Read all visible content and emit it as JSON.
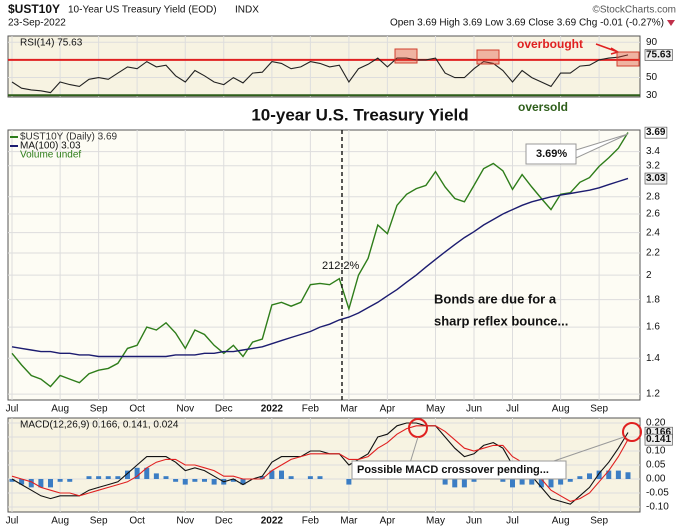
{
  "header": {
    "symbol": "$UST10Y",
    "name": "10-Year US Treasury Yield (EOD)",
    "exchange": "INDX",
    "date": "23-Sep-2022",
    "source": "©StockCharts.com",
    "quote": "Open 3.69 High 3.69 Low 3.69 Close 3.69 Chg -0.01 (-0.27%)"
  },
  "chart_data": [
    {
      "type": "line",
      "title": "RSI(14) 75.63",
      "ylim": [
        28,
        97
      ],
      "yticks": [
        90,
        50,
        30
      ],
      "grid": true,
      "overbought_level": 70,
      "overbought_color": "#e02020",
      "oversold_level": 30,
      "oversold_color": "#2e5e1a",
      "annotations": [
        "overbought",
        "oversold"
      ],
      "series": [
        {
          "color": "#222222",
          "values": [
            45,
            38,
            36,
            35,
            33,
            45,
            42,
            40,
            48,
            50,
            48,
            55,
            62,
            60,
            68,
            62,
            64,
            52,
            45,
            58,
            52,
            45,
            42,
            50,
            44,
            55,
            56,
            68,
            66,
            60,
            62,
            68,
            66,
            62,
            64,
            45,
            60,
            65,
            72,
            62,
            72,
            72,
            70,
            70,
            72,
            55,
            50,
            50,
            60,
            68,
            66,
            58,
            45,
            58,
            50,
            45,
            40,
            55,
            55,
            63,
            64,
            70,
            72,
            73,
            75.63
          ]
        }
      ]
    },
    {
      "type": "line",
      "title": "10-year U.S. Treasury Yield",
      "log_scale": true,
      "ylim": [
        1.17,
        3.73
      ],
      "yticks": [
        1.2,
        1.4,
        1.6,
        1.8,
        2.0,
        2.2,
        2.4,
        2.6,
        2.8,
        3.2,
        3.4
      ],
      "grid": true,
      "categories": [
        "Jul",
        null,
        null,
        null,
        null,
        "Aug",
        null,
        null,
        null,
        "Sep",
        null,
        null,
        null,
        "Oct",
        null,
        null,
        null,
        null,
        "Nov",
        null,
        null,
        null,
        "Dec",
        null,
        null,
        null,
        null,
        "2022",
        null,
        null,
        null,
        "Feb",
        null,
        null,
        null,
        "Mar",
        null,
        null,
        null,
        "Apr",
        null,
        null,
        null,
        null,
        "May",
        null,
        null,
        null,
        "Jun",
        null,
        null,
        null,
        "Jul",
        null,
        null,
        null,
        null,
        "Aug",
        null,
        null,
        null,
        "Sep",
        null,
        null,
        null
      ],
      "volume_label": "Volume undef",
      "annotations": [
        "212.2%",
        "3.69%",
        "Bonds are due for a",
        "sharp reflex bounce..."
      ],
      "series": [
        {
          "name": "$UST10Y (Daily) 3.69",
          "color": "#2e7d1a",
          "values": [
            1.43,
            1.36,
            1.3,
            1.28,
            1.24,
            1.3,
            1.28,
            1.26,
            1.31,
            1.33,
            1.34,
            1.37,
            1.46,
            1.48,
            1.6,
            1.58,
            1.63,
            1.56,
            1.46,
            1.58,
            1.55,
            1.48,
            1.43,
            1.48,
            1.41,
            1.5,
            1.52,
            1.76,
            1.78,
            1.75,
            1.78,
            1.92,
            1.93,
            1.92,
            1.97,
            1.73,
            2.0,
            2.15,
            2.48,
            2.39,
            2.7,
            2.83,
            2.9,
            2.94,
            3.12,
            2.92,
            2.78,
            2.74,
            2.94,
            3.16,
            3.23,
            3.13,
            2.89,
            3.08,
            2.92,
            2.78,
            2.65,
            2.83,
            2.85,
            2.98,
            3.04,
            3.19,
            3.31,
            3.45,
            3.69
          ]
        },
        {
          "name": "MA(100) 3.03",
          "color": "#1c1c70",
          "values": [
            1.47,
            1.46,
            1.45,
            1.44,
            1.44,
            1.43,
            1.43,
            1.42,
            1.42,
            1.41,
            1.41,
            1.41,
            1.41,
            1.41,
            1.41,
            1.41,
            1.41,
            1.42,
            1.42,
            1.42,
            1.43,
            1.43,
            1.44,
            1.44,
            1.45,
            1.46,
            1.47,
            1.49,
            1.51,
            1.53,
            1.55,
            1.57,
            1.6,
            1.62,
            1.65,
            1.67,
            1.7,
            1.74,
            1.78,
            1.83,
            1.88,
            1.94,
            2.0,
            2.07,
            2.14,
            2.21,
            2.28,
            2.35,
            2.41,
            2.48,
            2.54,
            2.6,
            2.65,
            2.7,
            2.74,
            2.77,
            2.8,
            2.82,
            2.84,
            2.86,
            2.88,
            2.91,
            2.95,
            2.99,
            3.03
          ]
        }
      ]
    },
    {
      "type": "line",
      "title": "MACD(12,26,9) 0.166, 0.141, 0.024",
      "ylim": [
        -0.118,
        0.218
      ],
      "yticks": [
        {
          "value": 0.2,
          "label": "0.20"
        },
        0.15,
        {
          "value": 0.1,
          "label": "0.10"
        },
        0.05,
        {
          "value": 0,
          "label": "0.00"
        },
        -0.05,
        {
          "value": -0.1,
          "label": "-0.10"
        }
      ],
      "grid": true,
      "annotations": [
        "Possible MACD crossover pending..."
      ],
      "series": [
        {
          "color": "#111111",
          "values": [
            0.0,
            -0.02,
            -0.04,
            -0.06,
            -0.07,
            -0.06,
            -0.06,
            -0.06,
            -0.04,
            -0.03,
            -0.02,
            -0.01,
            0.02,
            0.05,
            0.08,
            0.08,
            0.08,
            0.06,
            0.03,
            0.04,
            0.03,
            0.01,
            -0.01,
            0.0,
            -0.02,
            0.0,
            0.01,
            0.06,
            0.08,
            0.08,
            0.08,
            0.1,
            0.1,
            0.09,
            0.09,
            0.05,
            0.07,
            0.09,
            0.15,
            0.16,
            0.19,
            0.2,
            0.2,
            0.19,
            0.19,
            0.15,
            0.11,
            0.08,
            0.09,
            0.12,
            0.13,
            0.11,
            0.05,
            0.04,
            0.01,
            -0.03,
            -0.07,
            -0.08,
            -0.09,
            -0.06,
            -0.03,
            0.02,
            0.06,
            0.11,
            0.166
          ]
        },
        {
          "color": "#e02020",
          "values": [
            0.01,
            0.0,
            -0.01,
            -0.03,
            -0.04,
            -0.05,
            -0.05,
            -0.06,
            -0.05,
            -0.04,
            -0.03,
            -0.02,
            -0.01,
            0.01,
            0.04,
            0.06,
            0.07,
            0.07,
            0.05,
            0.05,
            0.04,
            0.03,
            0.01,
            0.01,
            0.0,
            0.0,
            0.0,
            0.03,
            0.05,
            0.07,
            0.08,
            0.09,
            0.09,
            0.09,
            0.09,
            0.07,
            0.07,
            0.08,
            0.11,
            0.13,
            0.16,
            0.18,
            0.19,
            0.19,
            0.19,
            0.17,
            0.14,
            0.11,
            0.1,
            0.11,
            0.12,
            0.12,
            0.08,
            0.06,
            0.03,
            0.0,
            -0.04,
            -0.06,
            -0.08,
            -0.07,
            -0.05,
            -0.01,
            0.03,
            0.08,
            0.141
          ]
        }
      ],
      "histogram": {
        "color": "#3b7dc4",
        "values": [
          -0.01,
          -0.02,
          -0.03,
          -0.03,
          -0.03,
          -0.01,
          -0.01,
          0.0,
          0.01,
          0.01,
          0.01,
          0.01,
          0.03,
          0.04,
          0.04,
          0.02,
          0.01,
          -0.01,
          -0.02,
          -0.01,
          -0.01,
          -0.02,
          -0.02,
          -0.01,
          -0.02,
          0.0,
          0.01,
          0.03,
          0.03,
          0.01,
          0.0,
          0.01,
          0.01,
          0.0,
          0.0,
          -0.02,
          0.0,
          0.01,
          0.04,
          0.03,
          0.03,
          0.02,
          0.01,
          0.0,
          0.0,
          -0.02,
          -0.03,
          -0.03,
          -0.01,
          0.01,
          0.01,
          -0.01,
          -0.03,
          -0.02,
          -0.02,
          -0.03,
          -0.03,
          -0.02,
          -0.01,
          0.01,
          0.02,
          0.03,
          0.03,
          0.03,
          0.024
        ]
      }
    }
  ]
}
